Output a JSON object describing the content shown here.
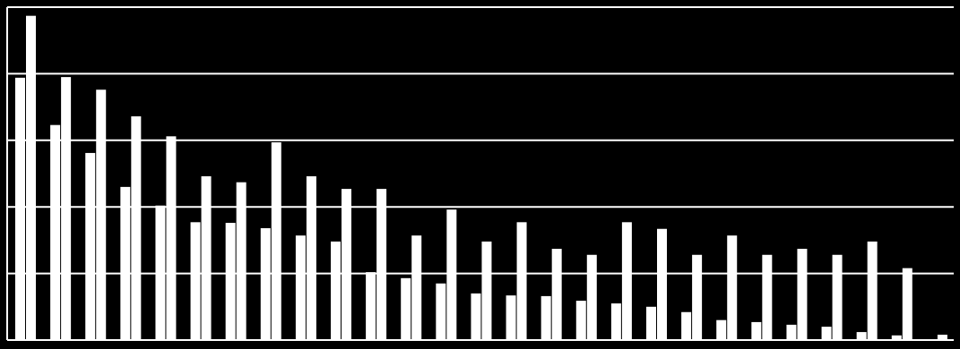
{
  "chart_data": {
    "type": "bar",
    "categories": [
      null,
      null,
      null,
      null,
      null,
      null,
      null,
      null,
      null,
      null,
      null,
      null,
      null,
      null,
      null,
      null,
      null,
      null,
      null,
      null,
      null,
      null,
      null,
      null,
      null,
      null,
      null
    ],
    "series": [
      {
        "color": "#ffffff",
        "values": [
          3.94,
          3.23,
          2.81,
          2.3,
          2.02,
          1.77,
          1.76,
          1.68,
          1.57,
          1.48,
          1.02,
          0.93,
          0.85,
          0.7,
          0.67,
          0.66,
          0.59,
          0.55,
          0.5,
          0.42,
          0.3,
          0.27,
          0.23,
          0.2,
          0.12,
          0.07,
          0.01
        ]
      },
      {
        "color": "#ffffff",
        "values": [
          4.87,
          3.95,
          3.76,
          3.36,
          3.06,
          2.46,
          2.37,
          2.97,
          2.46,
          2.27,
          2.27,
          1.57,
          1.96,
          1.48,
          1.77,
          1.37,
          1.28,
          1.77,
          1.67,
          1.28,
          1.57,
          1.28,
          1.37,
          1.28,
          1.48,
          1.08,
          0.08
        ]
      }
    ],
    "ylim": [
      0,
      5
    ],
    "yticks": [
      0,
      1,
      2,
      3,
      4,
      5
    ],
    "grid": true
  }
}
